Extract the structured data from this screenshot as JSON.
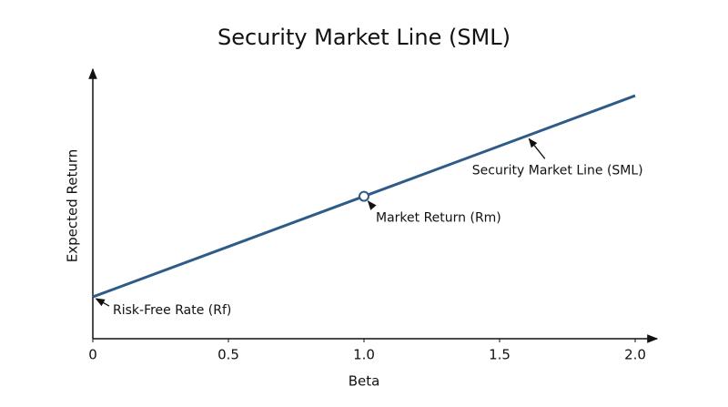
{
  "chart_data": {
    "type": "line",
    "title": "Security Market Line (SML)",
    "x_label": "Beta",
    "y_label": "Expected Return",
    "x": [
      0,
      1,
      2
    ],
    "series": [
      {
        "name": "Security Market Line (SML)",
        "color": "#2f5b88",
        "values": [
          1.6,
          5.45,
          9.3
        ]
      }
    ],
    "xlim": [
      0,
      2
    ],
    "ylim": [
      0,
      10
    ],
    "xticks": [
      0,
      0.5,
      {
        "value": 1,
        "label": "1.0"
      },
      1.5,
      {
        "value": 2,
        "label": "2.0"
      }
    ],
    "annotations": [
      {
        "text": "Risk-Free Rate (Rf)",
        "x": 0,
        "y": 1.6,
        "marker": false
      },
      {
        "text": "Market Return (Rm)",
        "x": 1,
        "y": 5.45,
        "marker": true
      },
      {
        "text": "Security Market Line (SML)",
        "x": 1.6,
        "y": 7.76,
        "marker": false
      }
    ]
  }
}
